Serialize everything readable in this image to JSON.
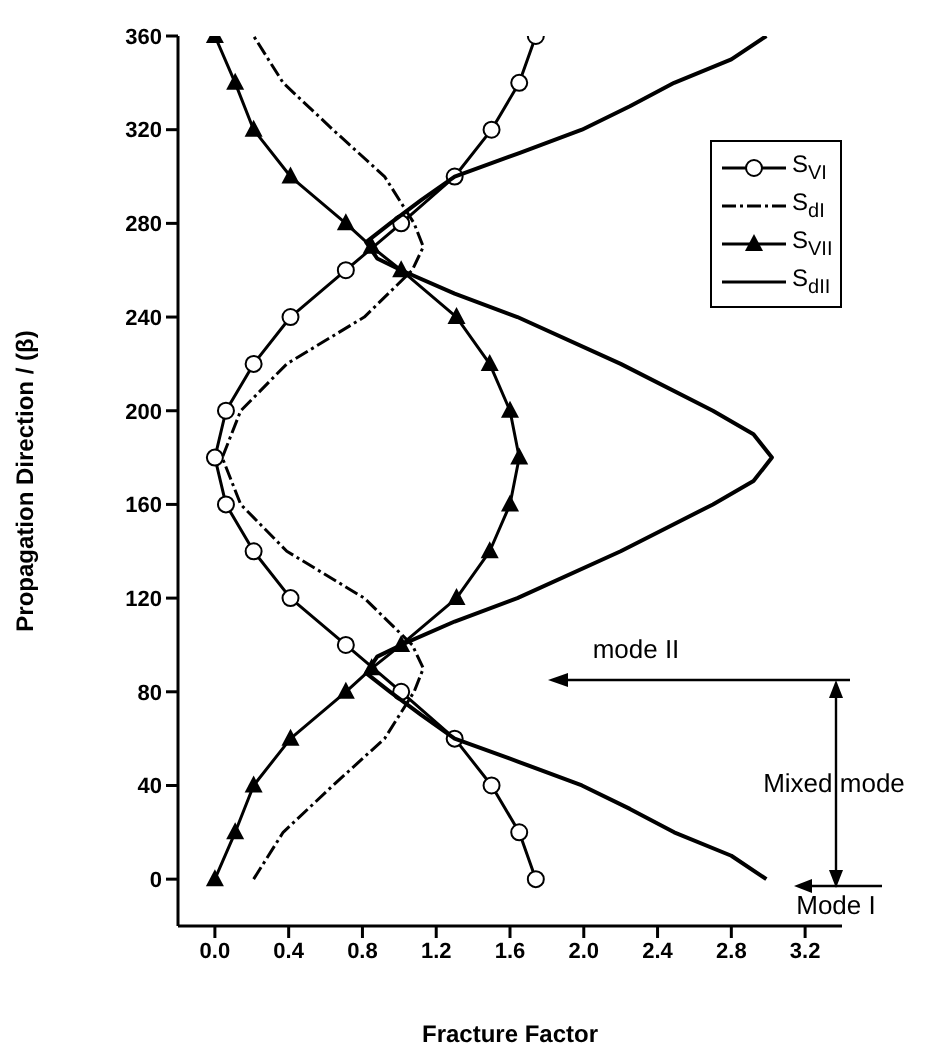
{
  "chart_data": {
    "type": "line",
    "xlabel": "Fracture Factor",
    "ylabel": "Propagation Direction / (β)",
    "xlim": [
      -0.2,
      3.4
    ],
    "xticks": [
      {
        "value": 0.0,
        "label": "0.0"
      },
      0.4,
      0.8,
      1.2,
      1.6,
      {
        "value": 2.0,
        "label": "2.0"
      },
      2.4,
      2.8,
      3.2
    ],
    "ylim": [
      -20,
      360
    ],
    "yticks": [
      0,
      40,
      80,
      120,
      160,
      200,
      240,
      280,
      320,
      360
    ],
    "grid": false,
    "legend": "top right",
    "annotations": [
      "mode II",
      "Mixed mode",
      "Mode I"
    ],
    "series": [
      {
        "name": "S$_{VI}$",
        "color": "#000000",
        "marker": "circle",
        "line_style": "solid",
        "x": [
          1.74,
          1.65,
          1.5,
          1.3,
          1.01,
          0.71,
          0.41,
          0.21,
          0.06,
          0.0,
          0.06,
          0.21,
          0.41,
          0.71,
          1.01,
          1.3,
          1.5,
          1.65,
          1.74
        ],
        "values": [
          0,
          20,
          40,
          60,
          80,
          100,
          120,
          140,
          160,
          180,
          200,
          220,
          240,
          260,
          280,
          300,
          320,
          340,
          360
        ]
      },
      {
        "name": "S$_{dI}$",
        "color": "#000000",
        "marker": "none",
        "line_style": "dashed",
        "x": [
          0.21,
          0.37,
          0.64,
          0.92,
          1.08,
          1.13,
          1.07,
          0.81,
          0.39,
          0.14,
          0.04,
          0.14,
          0.39,
          0.81,
          1.07,
          1.13,
          1.08,
          0.92,
          0.64,
          0.37,
          0.21
        ],
        "values": [
          0,
          20,
          40,
          60,
          80,
          90,
          100,
          120,
          140,
          160,
          180,
          200,
          220,
          240,
          260,
          270,
          280,
          300,
          320,
          340,
          360
        ]
      },
      {
        "name": "S$_{VII}$",
        "color": "#000000",
        "marker": "triangle",
        "line_style": "solid",
        "x": [
          0.0,
          0.11,
          0.21,
          0.41,
          0.71,
          0.85,
          1.01,
          1.31,
          1.49,
          1.6,
          1.65,
          1.6,
          1.49,
          1.31,
          1.01,
          0.85,
          0.71,
          0.41,
          0.21,
          0.11,
          0.0
        ],
        "values": [
          0,
          20,
          40,
          60,
          80,
          90,
          100,
          120,
          140,
          160,
          180,
          200,
          220,
          240,
          260,
          270,
          280,
          300,
          320,
          340,
          360
        ]
      },
      {
        "name": "S$_{dII}$",
        "color": "#000000",
        "marker": "none",
        "line_style": "solid",
        "x": [
          2.99,
          2.8,
          2.49,
          2.25,
          1.99,
          1.65,
          1.3,
          1.12,
          0.95,
          0.82,
          0.88,
          1.01,
          1.3,
          1.64,
          2.2,
          2.7,
          2.92,
          3.02,
          2.92,
          2.7,
          2.2,
          1.64,
          1.3,
          1.01,
          0.88,
          0.82,
          0.95,
          1.12,
          1.3,
          1.65,
          1.99,
          2.25,
          2.49,
          2.8,
          2.99
        ],
        "values": [
          0,
          10,
          20,
          30,
          40,
          50,
          60,
          70,
          80,
          88,
          95,
          100,
          110,
          120,
          140,
          160,
          170,
          180,
          190,
          200,
          220,
          240,
          250,
          260,
          265,
          272,
          280,
          290,
          300,
          310,
          320,
          330,
          340,
          350,
          360
        ]
      }
    ]
  }
}
